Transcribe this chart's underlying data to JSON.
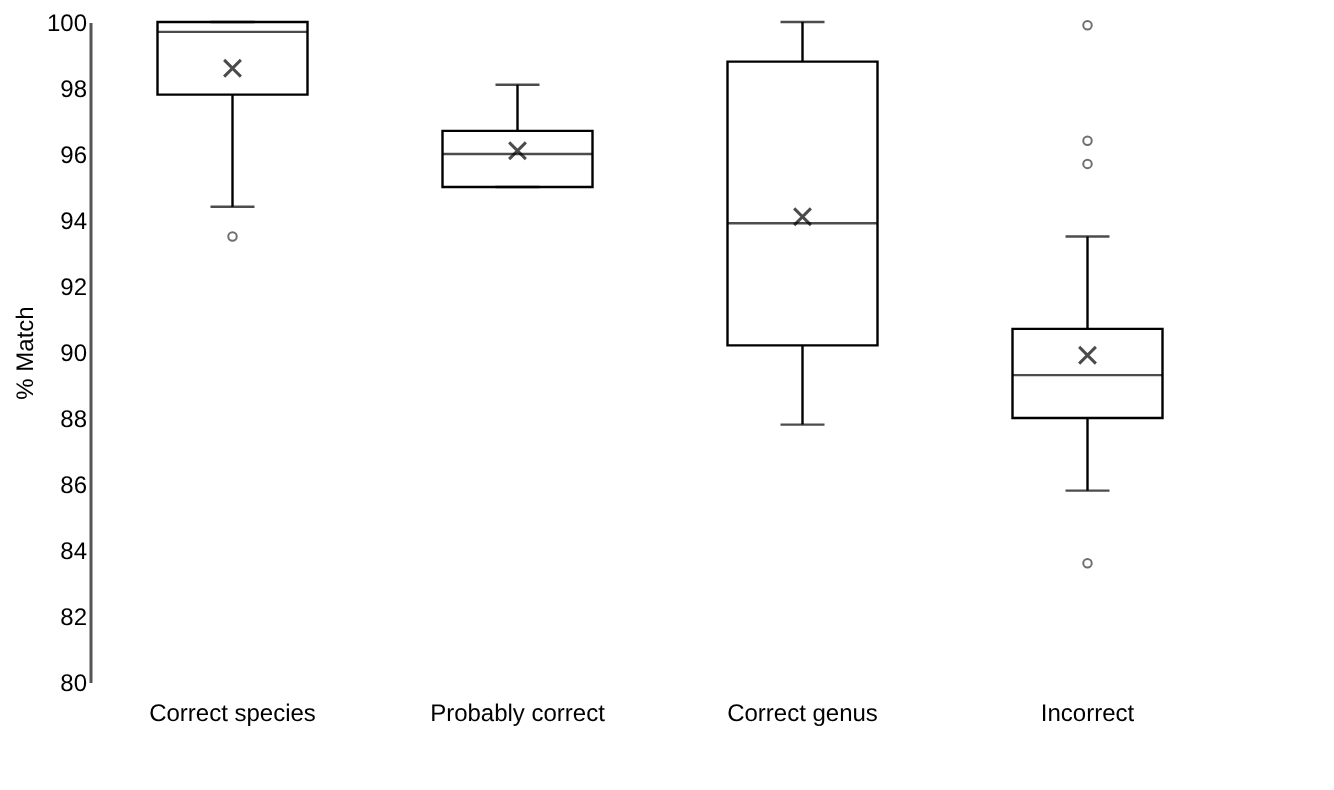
{
  "chart_data": {
    "type": "box",
    "ylabel": "% Match",
    "categories": [
      "Correct species",
      "Probably correct",
      "Correct genus",
      "Incorrect"
    ],
    "boxes": [
      {
        "low": 94.4,
        "q1": 97.8,
        "median": 99.7,
        "q3": 100,
        "high": 100,
        "mean": 98.6,
        "outliers": [
          93.5
        ]
      },
      {
        "low": 95.0,
        "q1": 95.0,
        "median": 96.0,
        "q3": 96.7,
        "high": 98.1,
        "mean": 96.1
      },
      {
        "low": 87.8,
        "q1": 90.2,
        "median": 93.9,
        "q3": 98.8,
        "high": 100,
        "mean": 94.1
      },
      {
        "low": 85.8,
        "q1": 88.0,
        "median": 89.3,
        "q3": 90.7,
        "high": 93.5,
        "mean": 89.9,
        "outliers": [
          99.9,
          96.4,
          95.7,
          83.6
        ]
      }
    ],
    "ylim": [
      80,
      100
    ],
    "yticks": [
      80,
      82,
      84,
      86,
      88,
      90,
      92,
      94,
      96,
      98,
      100
    ],
    "grid": false
  }
}
